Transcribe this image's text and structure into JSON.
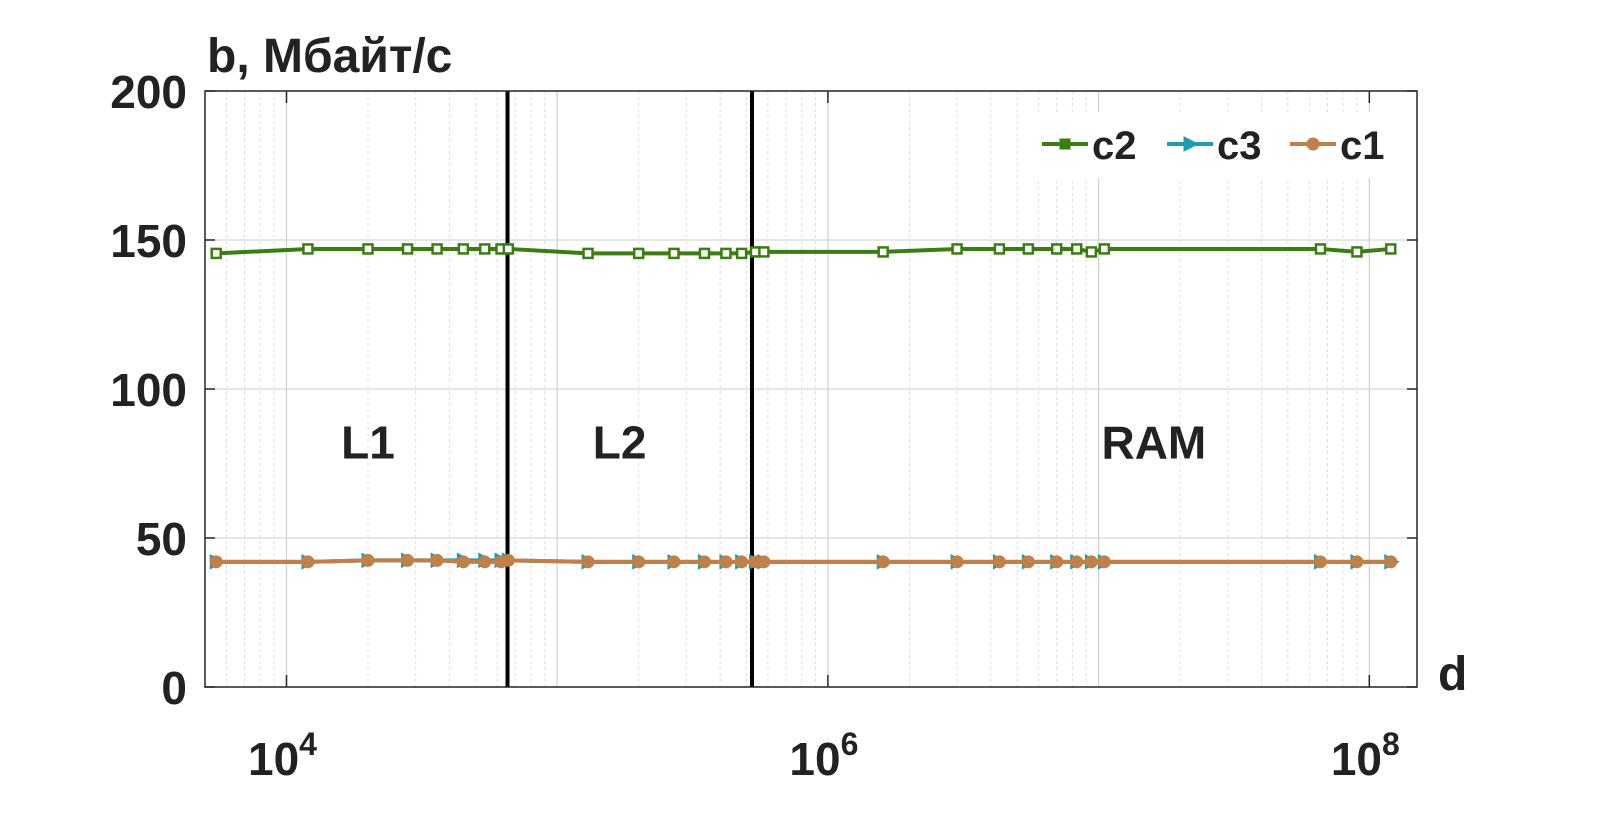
{
  "chart_data": {
    "type": "line",
    "title": "",
    "xlabel": "d",
    "ylabel": "b, Мбайт/с",
    "xscale": "log",
    "xlim": [
      5000,
      150000000
    ],
    "ylim": [
      0,
      200
    ],
    "x_ticks": [
      10000,
      1000000,
      100000000
    ],
    "x_tick_labels": [
      {
        "base": "10",
        "exp": "4"
      },
      {
        "base": "10",
        "exp": "6"
      },
      {
        "base": "10",
        "exp": "8"
      }
    ],
    "y_ticks": [
      0,
      50,
      100,
      150,
      200
    ],
    "y_tick_labels": [
      "0",
      "50",
      "100",
      "150",
      "200"
    ],
    "grid": true,
    "legend_position": "top-right",
    "vertical_lines": [
      65536,
      524288
    ],
    "regions": [
      {
        "label": "L1",
        "x": 20000,
        "y": 82
      },
      {
        "label": "L2",
        "x": 170000,
        "y": 82
      },
      {
        "label": "RAM",
        "x": 16000000,
        "y": 82
      }
    ],
    "x": [
      5500,
      12000,
      20000,
      28000,
      36000,
      45000,
      54000,
      62000,
      66000,
      130000,
      200000,
      270000,
      350000,
      420000,
      480000,
      540000,
      580000,
      1600000,
      3000000,
      4300000,
      5500000,
      7000000,
      8300000,
      9400000,
      10500000,
      66000000,
      90000000,
      120000000
    ],
    "series": [
      {
        "name": "c2",
        "color": "#3a7d10",
        "marker": "square",
        "values": [
          145.5,
          147,
          147,
          147,
          147,
          147,
          147,
          147,
          147,
          145.5,
          145.5,
          145.5,
          145.5,
          145.5,
          145.5,
          146,
          146,
          146,
          147,
          147,
          147,
          147,
          147,
          146,
          147,
          147,
          146,
          147
        ]
      },
      {
        "name": "c3",
        "color": "#1a9fb0",
        "marker": "triangle-right",
        "values": [
          42,
          42,
          42.5,
          42.5,
          42.5,
          42.5,
          42.5,
          42.5,
          42.5,
          42,
          42,
          42,
          42,
          42,
          42,
          42,
          42,
          42,
          42,
          42,
          42,
          42,
          42,
          42,
          42,
          42,
          42,
          42
        ]
      },
      {
        "name": "c1",
        "color": "#c0804a",
        "marker": "circle",
        "values": [
          42,
          42,
          42.5,
          42.5,
          42.5,
          42,
          42,
          42,
          42.5,
          42,
          42,
          42,
          42,
          42,
          42,
          42,
          42,
          42,
          42,
          42,
          42,
          42,
          42,
          42,
          42,
          42,
          42,
          42
        ]
      }
    ]
  }
}
